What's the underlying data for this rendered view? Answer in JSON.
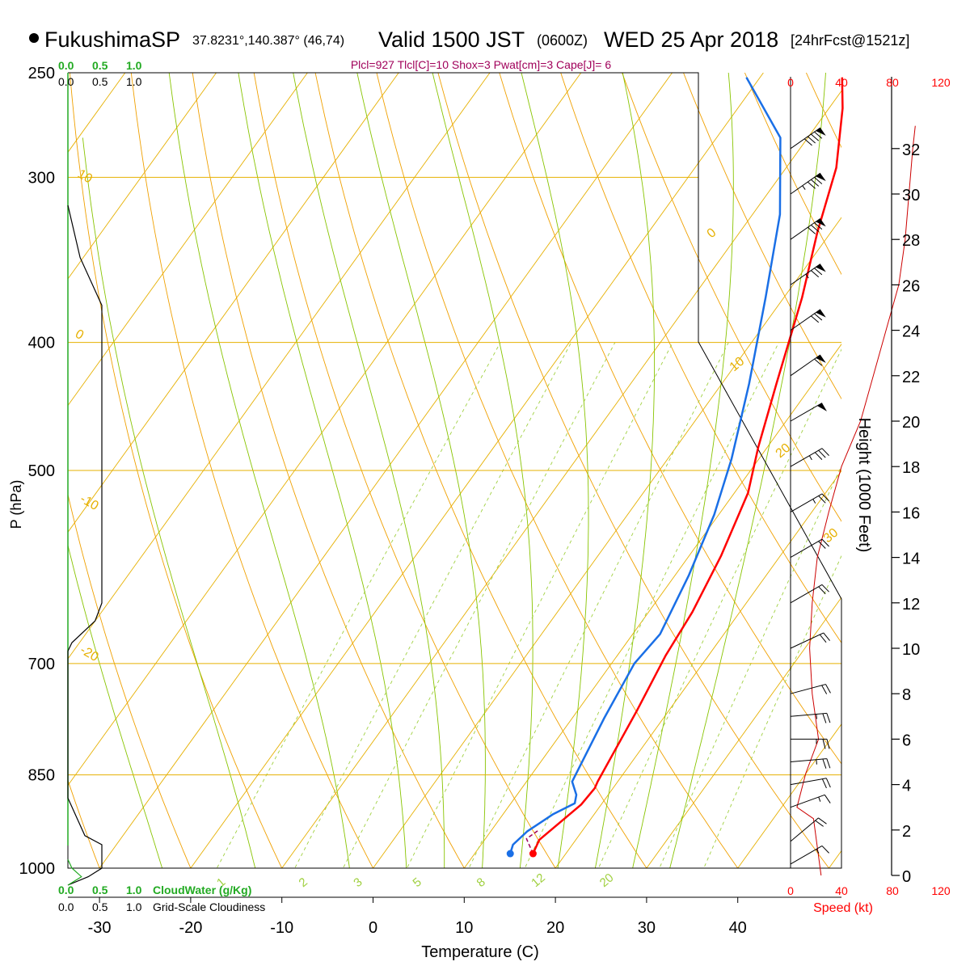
{
  "header": {
    "station": "FukushimaSP",
    "coords": "37.8231°,140.387° (46,74)",
    "valid": "Valid 1500 JST",
    "zulu": "(0600Z)",
    "date": "WED 25 Apr 2018",
    "fcst": "[24hrFcst@1521z]",
    "indices": "Plcl=927 Tlcl[C]=10 Shox=3 Pwat[cm]=3 Cape[J]= 6"
  },
  "axes": {
    "xlabel": "Temperature (C)",
    "ylabel": "P (hPa)",
    "height_label": "Height (1000 Feet)",
    "speed_label": "Speed (kt)"
  },
  "legend": {
    "cloudwater_label": "CloudWater (g/Kg)",
    "cloudiness_label": "Grid-Scale Cloudiness",
    "scale_labels": [
      "0.0",
      "0.5",
      "1.0"
    ],
    "scale_labels_top_black": [
      "0.0",
      "0.5",
      "1.0"
    ],
    "speed_scale": [
      "0",
      "40",
      "80",
      "120"
    ]
  },
  "colors": {
    "temperature": "#ff0000",
    "dewpoint": "#1a6fe6",
    "isotherm": "#e6b000",
    "dry_adiabat": "#f0a000",
    "moist_adiabat": "#88c400",
    "mixing_ratio": "#a0d040",
    "cloudwater": "#22aa22",
    "wind_speed": "#cc0000"
  },
  "chart_data": {
    "type": "line",
    "title": "",
    "xlabel": "Temperature (C)",
    "ylabel": "P (hPa)",
    "pressure_ticks": [
      250,
      300,
      400,
      500,
      700,
      850,
      1000
    ],
    "temperature_ticks": [
      -30,
      -20,
      -10,
      0,
      10,
      20,
      30,
      40
    ],
    "height_ticks_kft": [
      0,
      2,
      4,
      6,
      8,
      10,
      12,
      14,
      16,
      18,
      20,
      22,
      24,
      26,
      28,
      30,
      32
    ],
    "dry_adiabat_labels": [
      "10",
      "0",
      "-10",
      "-20",
      "0",
      "10",
      "20",
      "30"
    ],
    "mixing_ratio_labels": [
      "1",
      "2",
      "3",
      "5",
      "8",
      "12",
      "20"
    ],
    "series": [
      {
        "name": "Temperature",
        "points": [
          [
            16.4,
            975
          ],
          [
            16,
            952
          ],
          [
            17.8,
            895
          ],
          [
            18,
            870
          ],
          [
            17.8,
            860
          ],
          [
            16.5,
            760
          ],
          [
            15.3,
            690
          ],
          [
            14.8,
            640
          ],
          [
            13.5,
            580
          ],
          [
            11.5,
            520
          ],
          [
            9,
            480
          ],
          [
            6,
            430
          ],
          [
            2,
            370
          ],
          [
            -1.5,
            330
          ],
          [
            -4.5,
            295
          ],
          [
            -8.5,
            266
          ],
          [
            -11,
            252
          ]
        ]
      },
      {
        "name": "Dewpoint",
        "points": [
          [
            13.9,
            975
          ],
          [
            13.5,
            960
          ],
          [
            14,
            938
          ],
          [
            15.5,
            910
          ],
          [
            17,
            893
          ],
          [
            16.5,
            880
          ],
          [
            15,
            860
          ],
          [
            13.5,
            770
          ],
          [
            12.5,
            700
          ],
          [
            13,
            665
          ],
          [
            11.5,
            600
          ],
          [
            9.5,
            540
          ],
          [
            7,
            490
          ],
          [
            3,
            430
          ],
          [
            -2,
            370
          ],
          [
            -7,
            320
          ],
          [
            -13,
            280
          ],
          [
            -21.5,
            252
          ]
        ]
      },
      {
        "name": "Parcel",
        "points": [
          [
            16.4,
            975
          ],
          [
            14.5,
            950
          ],
          [
            15.2,
            935
          ]
        ]
      }
    ],
    "cloudiness_profile": [
      [
        0.0,
        315
      ],
      [
        0.18,
        345
      ],
      [
        0.5,
        375
      ],
      [
        0.5,
        520
      ],
      [
        0.5,
        610
      ],
      [
        0.5,
        630
      ],
      [
        0.4,
        650
      ],
      [
        0.06,
        675
      ],
      [
        0.0,
        685
      ],
      [
        0.0,
        885
      ],
      [
        0.25,
        945
      ],
      [
        0.5,
        960
      ],
      [
        0.5,
        1000
      ],
      [
        0.3,
        1015
      ],
      [
        0.0,
        1030
      ]
    ],
    "cloudwater_profile": [
      [
        0.0,
        985
      ],
      [
        0.06,
        1000
      ],
      [
        0.2,
        1015
      ],
      [
        0.0,
        1030
      ]
    ],
    "wind_speed_profile_kt": [
      [
        24,
        0
      ],
      [
        18,
        2.5
      ],
      [
        5,
        3
      ],
      [
        12,
        4.5
      ],
      [
        22,
        6
      ],
      [
        17,
        8
      ],
      [
        15,
        10
      ],
      [
        17,
        12
      ],
      [
        21,
        14
      ],
      [
        30,
        16
      ],
      [
        40,
        18
      ],
      [
        55,
        20
      ],
      [
        65,
        22
      ],
      [
        75,
        24
      ],
      [
        85,
        26
      ],
      [
        90,
        28
      ],
      [
        93,
        30
      ],
      [
        96,
        32
      ],
      [
        98,
        33
      ]
    ],
    "wind_barbs": [
      {
        "height_kft": 0.5,
        "speed_kt": 15,
        "dir_deg": 240
      },
      {
        "height_kft": 1.5,
        "speed_kt": 20,
        "dir_deg": 230
      },
      {
        "height_kft": 3,
        "speed_kt": 15,
        "dir_deg": 250
      },
      {
        "height_kft": 4,
        "speed_kt": 20,
        "dir_deg": 260
      },
      {
        "height_kft": 5,
        "speed_kt": 25,
        "dir_deg": 265
      },
      {
        "height_kft": 6,
        "speed_kt": 25,
        "dir_deg": 270
      },
      {
        "height_kft": 7,
        "speed_kt": 25,
        "dir_deg": 265
      },
      {
        "height_kft": 8,
        "speed_kt": 20,
        "dir_deg": 255
      },
      {
        "height_kft": 10,
        "speed_kt": 20,
        "dir_deg": 245
      },
      {
        "height_kft": 12,
        "speed_kt": 20,
        "dir_deg": 240
      },
      {
        "height_kft": 14,
        "speed_kt": 20,
        "dir_deg": 240
      },
      {
        "height_kft": 16,
        "speed_kt": 25,
        "dir_deg": 240
      },
      {
        "height_kft": 18,
        "speed_kt": 35,
        "dir_deg": 240
      },
      {
        "height_kft": 20,
        "speed_kt": 50,
        "dir_deg": 240
      },
      {
        "height_kft": 22,
        "speed_kt": 60,
        "dir_deg": 235
      },
      {
        "height_kft": 24,
        "speed_kt": 70,
        "dir_deg": 235
      },
      {
        "height_kft": 26,
        "speed_kt": 75,
        "dir_deg": 235
      },
      {
        "height_kft": 28,
        "speed_kt": 80,
        "dir_deg": 235
      },
      {
        "height_kft": 30,
        "speed_kt": 85,
        "dir_deg": 235
      },
      {
        "height_kft": 32,
        "speed_kt": 90,
        "dir_deg": 235
      }
    ]
  }
}
